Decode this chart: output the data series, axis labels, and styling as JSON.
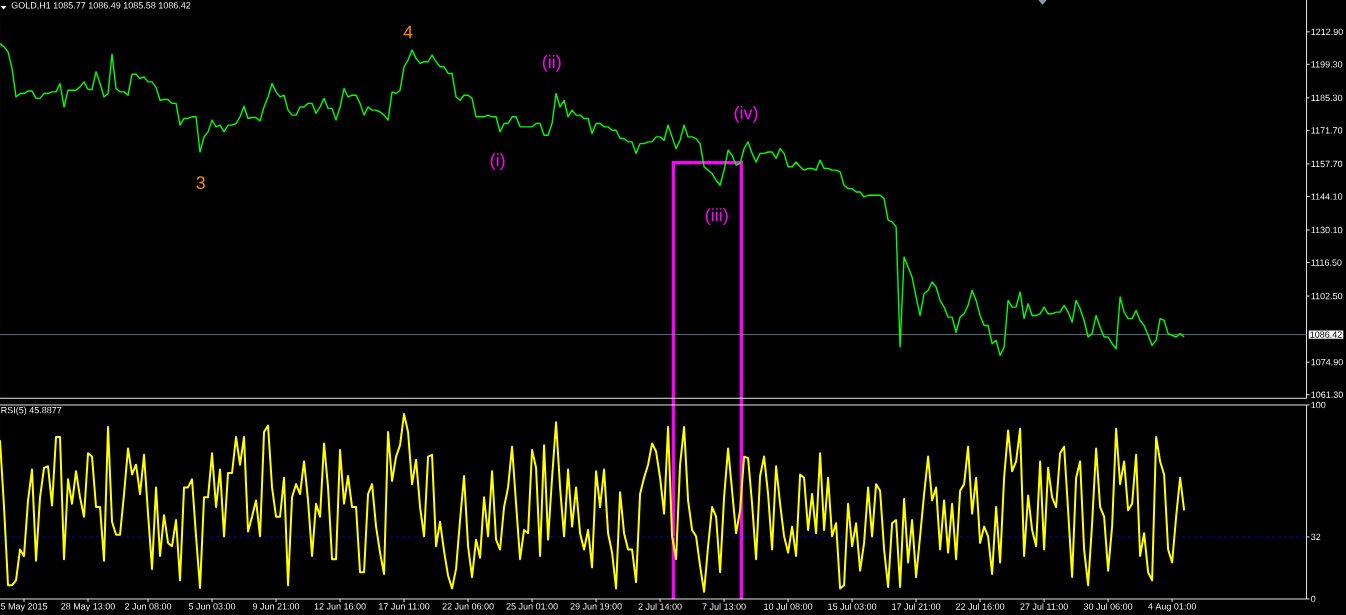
{
  "chart_data": [
    {
      "type": "line",
      "title": "GOLD,H1  1085.77 1086.49 1085.58 1086.42",
      "categories": [
        null,
        null,
        null,
        null,
        null,
        null,
        null,
        null,
        null,
        null,
        null,
        null,
        null,
        null,
        null,
        null,
        null,
        null,
        null,
        null,
        null,
        null,
        null,
        null,
        null,
        null,
        null,
        null,
        null,
        null,
        null,
        null,
        null,
        null,
        null,
        null,
        null,
        null,
        null,
        null,
        null,
        null,
        null,
        null,
        null,
        null,
        null,
        null,
        null,
        null,
        null,
        null,
        null,
        null,
        null,
        null,
        null,
        null,
        null,
        null,
        null,
        null,
        null,
        null,
        null,
        null,
        null,
        null,
        null,
        null,
        null,
        null,
        null,
        null,
        null,
        null,
        null,
        null,
        null,
        null,
        null,
        null,
        null,
        null,
        null,
        null,
        null,
        null,
        null,
        null,
        null,
        null,
        null,
        null,
        null,
        null,
        null,
        null,
        null,
        null,
        null,
        null,
        null,
        null,
        null,
        null,
        null,
        null,
        null,
        null,
        null,
        null,
        null,
        null,
        null,
        null,
        null,
        null,
        null,
        null,
        null,
        null,
        null,
        null,
        null,
        null,
        null,
        null,
        null,
        null,
        null,
        null,
        null,
        null,
        null,
        null,
        null,
        null,
        null,
        null,
        null,
        null,
        null,
        null,
        null,
        null,
        null,
        null,
        null,
        null,
        null,
        null,
        null,
        null,
        null,
        null,
        null,
        null,
        null,
        null,
        null,
        null,
        null,
        null,
        null,
        null,
        null,
        null,
        null,
        null,
        null,
        null,
        null,
        null,
        null,
        null,
        null,
        null,
        null,
        null,
        null,
        null,
        null,
        null,
        null,
        null,
        null,
        null,
        null,
        null,
        null,
        null,
        null,
        null,
        null,
        null,
        null,
        null,
        null,
        null,
        null,
        null,
        null,
        null,
        null,
        null,
        null,
        null,
        null,
        null,
        null,
        null,
        null,
        null,
        null,
        null,
        null,
        null,
        null,
        null,
        null,
        null,
        null,
        null,
        null,
        null,
        null,
        null,
        null,
        null,
        null,
        null,
        null,
        null,
        null,
        null,
        null,
        null,
        null,
        null,
        null,
        null,
        null,
        null,
        null,
        null,
        null,
        null,
        null,
        null,
        null,
        null,
        null,
        null,
        null,
        null,
        null,
        null,
        null,
        null,
        null,
        null,
        null,
        null,
        null,
        null,
        null,
        null,
        null,
        null,
        null,
        null,
        null,
        null,
        null,
        null,
        null,
        null,
        null,
        null,
        null,
        null,
        null,
        null,
        null,
        null,
        null,
        null,
        null,
        null,
        null,
        null,
        null,
        null,
        null,
        null,
        null
      ],
      "series": [
        {
          "color": "#00ff00",
          "values": [
            1208.0,
            1206.6,
            1204.5,
            1197.7,
            1185.7,
            1187.1,
            1187.1,
            1188.2,
            1188.2,
            1185.1,
            1185.1,
            1187.1,
            1187.1,
            1187.8,
            1187.8,
            1191.3,
            1181.5,
            1188.5,
            1188.5,
            1188.5,
            1189.9,
            1192.0,
            1188.8,
            1188.8,
            1196.2,
            1191.3,
            1185.7,
            1187.1,
            1203.6,
            1189.2,
            1187.8,
            1187.8,
            1186.4,
            1195.2,
            1195.2,
            1193.4,
            1194.1,
            1192.0,
            1192.0,
            1189.7,
            1184.3,
            1184.6,
            1184.6,
            1183.0,
            1183.0,
            1173.9,
            1176.7,
            1176.7,
            1177.4,
            1177.4,
            1162.7,
            1169.0,
            1171.1,
            1176.0,
            1173.2,
            1173.9,
            1171.1,
            1173.9,
            1173.9,
            1174.6,
            1177.4,
            1181.8,
            1176.7,
            1177.1,
            1177.1,
            1175.7,
            1181.5,
            1185.7,
            1191.3,
            1187.8,
            1185.7,
            1186.4,
            1180.2,
            1178.1,
            1178.1,
            1181.5,
            1181.5,
            1183.0,
            1183.0,
            1178.8,
            1181.5,
            1185.1,
            1180.9,
            1180.9,
            1176.0,
            1181.5,
            1189.2,
            1185.7,
            1186.4,
            1186.4,
            1183.0,
            1178.1,
            1181.5,
            1180.2,
            1180.2,
            1179.4,
            1178.1,
            1176.0,
            1187.8,
            1187.1,
            1188.5,
            1198.3,
            1201.1,
            1205.3,
            1201.8,
            1199.7,
            1200.4,
            1200.4,
            1203.2,
            1200.4,
            1198.3,
            1198.3,
            1195.5,
            1195.5,
            1185.7,
            1184.3,
            1186.4,
            1186.4,
            1185.1,
            1177.4,
            1177.4,
            1177.4,
            1178.1,
            1177.4,
            1177.4,
            1171.1,
            1174.6,
            1174.6,
            1177.4,
            1177.4,
            1173.2,
            1173.2,
            1173.2,
            1173.2,
            1174.6,
            1174.6,
            1169.7,
            1169.7,
            1174.6,
            1187.1,
            1181.5,
            1184.3,
            1177.4,
            1180.2,
            1178.1,
            1178.1,
            1176.7,
            1176.7,
            1170.4,
            1174.6,
            1174.6,
            1173.2,
            1173.2,
            1171.8,
            1171.8,
            1168.3,
            1168.3,
            1166.9,
            1166.9,
            1162.1,
            1166.2,
            1166.2,
            1166.9,
            1166.9,
            1169.0,
            1169.0,
            1167.6,
            1173.9,
            1169.0,
            1164.1,
            1167.6,
            1173.9,
            1169.0,
            1169.0,
            1168.3,
            1166.2,
            1156.5,
            1155.1,
            1153.7,
            1150.9,
            1148.8,
            1155.1,
            1163.4,
            1161.3,
            1157.2,
            1157.9,
            1164.1,
            1166.9,
            1162.1,
            1158.5,
            1162.1,
            1162.1,
            1162.7,
            1162.7,
            1160.0,
            1164.1,
            1162.1,
            1156.5,
            1156.5,
            1158.5,
            1156.5,
            1155.1,
            1155.8,
            1155.8,
            1155.1,
            1159.3,
            1155.8,
            1155.8,
            1155.1,
            1155.1,
            1154.4,
            1148.8,
            1147.4,
            1147.4,
            1146.0,
            1146.0,
            1143.9,
            1144.6,
            1144.6,
            1144.6,
            1144.6,
            1143.2,
            1134.2,
            1133.5,
            1131.4,
            1081.2,
            1118.8,
            1114.6,
            1110.4,
            1102.1,
            1094.4,
            1103.5,
            1104.9,
            1108.4,
            1106.3,
            1100.7,
            1097.9,
            1093.7,
            1093.7,
            1087.4,
            1093.7,
            1095.1,
            1098.6,
            1104.9,
            1100.7,
            1094.4,
            1090.2,
            1090.2,
            1082.6,
            1084.0,
            1077.7,
            1081.2,
            1100.7,
            1097.9,
            1097.9,
            1104.2,
            1093.1,
            1099.3,
            1094.4,
            1094.4,
            1095.1,
            1097.9,
            1095.1,
            1095.1,
            1095.8,
            1095.8,
            1098.6,
            1095.8,
            1091.6,
            1100.7,
            1097.2,
            1092.3,
            1085.4,
            1086.8,
            1094.4,
            1089.5,
            1085.4,
            1085.4,
            1082.6,
            1080.5,
            1102.1,
            1095.8,
            1093.1,
            1093.1,
            1096.5,
            1092.3,
            1090.2,
            1086.1,
            1081.9,
            1084.0,
            1093.1,
            1092.3,
            1086.8,
            1086.1,
            1085.4,
            1086.8,
            1085.4
          ]
        }
      ],
      "ylim": [
        1059.8,
        1226.2
      ],
      "yticks": [
        {
          "value": 1212.9,
          "label": "1212.90"
        },
        {
          "value": 1199.3,
          "label": "1199.30"
        },
        {
          "value": 1185.3,
          "label": "1185.30"
        },
        {
          "value": 1171.7,
          "label": "1171.70"
        },
        {
          "value": 1157.7,
          "label": "1157.70"
        },
        {
          "value": 1144.1,
          "label": "1144.10"
        },
        {
          "value": 1130.1,
          "label": "1130.10"
        },
        {
          "value": 1116.5,
          "label": "1116.50"
        },
        {
          "value": 1102.5,
          "label": "1102.50"
        },
        {
          "value": 1074.9,
          "label": "1074.90"
        },
        {
          "value": 1061.3,
          "label": "1061.30"
        }
      ],
      "ref_lines": [
        {
          "axis": "y",
          "value": 1086.42,
          "label": "1086.42",
          "color": "#778899"
        }
      ],
      "annotations": [
        "3",
        "4",
        "(i)",
        "(ii)",
        "(iii)",
        "(iv)"
      ]
    },
    {
      "type": "line",
      "title": "RSI(5) 45.8877",
      "categories": [
        null,
        null,
        null,
        null,
        null,
        null,
        "5 May 2015",
        null,
        null,
        null,
        null,
        null,
        null,
        null,
        null,
        null,
        null,
        null,
        null,
        null,
        null,
        null,
        "28 May 13:00",
        null,
        null,
        null,
        null,
        null,
        null,
        null,
        null,
        null,
        null,
        null,
        null,
        null,
        null,
        "2 Jun 08:00",
        null,
        null,
        null,
        null,
        null,
        null,
        null,
        null,
        null,
        null,
        null,
        null,
        null,
        null,
        null,
        "5 Jun 03:00",
        null,
        null,
        null,
        null,
        null,
        null,
        null,
        null,
        null,
        null,
        null,
        null,
        null,
        null,
        null,
        "9 Jun 21:00",
        null,
        null,
        null,
        null,
        null,
        null,
        null,
        null,
        null,
        null,
        null,
        null,
        null,
        null,
        null,
        "12 Jun 16:00",
        null,
        null,
        null,
        null,
        null,
        null,
        null,
        null,
        null,
        null,
        null,
        null,
        null,
        null,
        null,
        "17 Jun 11:00",
        null,
        null,
        null,
        null,
        null,
        null,
        null,
        null,
        null,
        null,
        null,
        null,
        null,
        null,
        null,
        "22 Jun 06:00",
        null,
        null,
        null,
        null,
        null,
        null,
        null,
        null,
        null,
        null,
        null,
        null,
        null,
        null,
        null,
        "25 Jun 01:00",
        null,
        null,
        null,
        null,
        null,
        null,
        null,
        null,
        null,
        null,
        null,
        null,
        null,
        null,
        null,
        "29 Jun 19:00",
        null,
        null,
        null,
        null,
        null,
        null,
        null,
        null,
        null,
        null,
        null,
        null,
        null,
        null,
        null,
        "2 Jul 14:00",
        null,
        null,
        null,
        null,
        null,
        null,
        null,
        null,
        null,
        null,
        null,
        null,
        null,
        null,
        null,
        "7 Jul 13:00",
        null,
        null,
        null,
        null,
        null,
        null,
        null,
        null,
        null,
        null,
        null,
        null,
        null,
        null,
        null,
        "10 Jul 08:00",
        null,
        null,
        null,
        null,
        null,
        null,
        null,
        null,
        null,
        null,
        null,
        null,
        null,
        null,
        null,
        "15 Jul 03:00",
        null,
        null,
        null,
        null,
        null,
        null,
        null,
        null,
        null,
        null,
        null,
        null,
        null,
        null,
        null,
        "17 Jul 21:00",
        null,
        null,
        null,
        null,
        null,
        null,
        null,
        null,
        null,
        null,
        null,
        null,
        null,
        null,
        null,
        "22 Jul 16:00",
        null,
        null,
        null,
        null,
        null,
        null,
        null,
        null,
        null,
        null,
        null,
        null,
        null,
        null,
        null,
        "27 Jul 11:00",
        null,
        null,
        null,
        null,
        null,
        null,
        null,
        null,
        null,
        null,
        null,
        null,
        null,
        null,
        null,
        "30 Jul 06:00",
        null,
        null,
        null,
        null,
        null,
        null,
        null,
        null,
        null,
        null,
        null,
        null,
        null,
        null,
        null,
        "4 Aug 01:00",
        null,
        null,
        null
      ],
      "series": [
        {
          "color": "#ffff00",
          "values": [
            81.8,
            47.4,
            7.1,
            7.1,
            9.6,
            25.5,
            22.2,
            50.8,
            66.7,
            19.7,
            52.4,
            67.6,
            68.4,
            48.2,
            83.5,
            83.5,
            20.5,
            61.7,
            49.1,
            65.9,
            52.4,
            42.4,
            75.1,
            73.4,
            47.4,
            47.4,
            19.7,
            88.6,
            39.8,
            33.1,
            33.1,
            54.1,
            77.6,
            64.2,
            69.2,
            54.1,
            74.3,
            44.0,
            15.5,
            57.5,
            22.2,
            43.2,
            28.9,
            27.2,
            40.7,
            9.6,
            57.5,
            57.5,
            61.7,
            32.3,
            5.7,
            52.4,
            52.4,
            75.1,
            47.4,
            66.7,
            32.3,
            65.0,
            65.0,
            83.5,
            69.2,
            83.5,
            34.8,
            42.4,
            50.8,
            32.3,
            86.1,
            89.4,
            57.5,
            42.4,
            42.4,
            62.5,
            7.1,
            52.4,
            59.2,
            54.1,
            70.9,
            50.8,
            22.2,
            49.1,
            42.4,
            80.2,
            57.5,
            20.5,
            20.5,
            76.8,
            49.1,
            63.4,
            47.4,
            47.4,
            13.8,
            13.8,
            54.1,
            59.2,
            37.3,
            23.9,
            12.9,
            86.1,
            60.8,
            73.4,
            79.3,
            95.3,
            86.1,
            59.2,
            71.8,
            47.4,
            32.3,
            73.4,
            74.3,
            27.2,
            39.8,
            24.7,
            12.1,
            5.4,
            15.5,
            40.7,
            63.4,
            27.2,
            11.3,
            30.6,
            21.3,
            52.4,
            32.3,
            65.9,
            30.6,
            25.5,
            47.4,
            57.5,
            78.5,
            49.1,
            20.5,
            35.6,
            33.9,
            76.8,
            67.6,
            22.2,
            79.3,
            30.6,
            62.5,
            91.1,
            57.5,
            32.3,
            66.7,
            37.3,
            57.5,
            33.9,
            25.5,
            35.6,
            16.3,
            65.9,
            47.4,
            66.7,
            33.9,
            23.9,
            5.4,
            55.0,
            33.9,
            25.5,
            25.5,
            8.7,
            54.1,
            62.5,
            69.2,
            80.2,
            76.0,
            62.5,
            44.0,
            88.6,
            32.3,
            20.5,
            69.2,
            88.6,
            50.8,
            35.6,
            32.3,
            17.1,
            3.7,
            27.2,
            47.4,
            42.4,
            13.8,
            52.4,
            77.6,
            55.8,
            33.9,
            45.7,
            73.4,
            72.6,
            49.1,
            20.5,
            63.4,
            73.4,
            54.1,
            25.5,
            68.4,
            49.1,
            32.3,
            23.9,
            37.3,
            22.2,
            64.2,
            62.5,
            35.6,
            54.1,
            33.9,
            75.1,
            35.6,
            62.5,
            32.3,
            39.0,
            5.4,
            7.1,
            49.1,
            27.2,
            39.0,
            14.6,
            28.9,
            57.5,
            32.3,
            59.2,
            55.8,
            25.5,
            6.2,
            39.0,
            40.7,
            6.2,
            51.6,
            18.8,
            40.7,
            11.3,
            32.3,
            54.1,
            73.4,
            50.8,
            57.5,
            25.5,
            50.8,
            23.9,
            49.1,
            20.5,
            55.8,
            59.2,
            78.5,
            44.0,
            62.5,
            28.9,
            37.3,
            32.3,
            12.9,
            47.4,
            18.8,
            62.5,
            86.9,
            65.9,
            70.9,
            87.7,
            22.2,
            53.3,
            35.6,
            27.2,
            70.9,
            25.5,
            67.6,
            52.4,
            47.4,
            75.1,
            78.5,
            45.7,
            11.3,
            62.5,
            70.9,
            25.5,
            7.1,
            39.0,
            77.6,
            47.4,
            42.4,
            14.6,
            37.3,
            87.7,
            59.2,
            70.9,
            45.7,
            49.1,
            74.3,
            22.2,
            33.9,
            13.8,
            9.6,
            83.5,
            70.9,
            64.2,
            25.5,
            18.8,
            42.4,
            62.5,
            45.7
          ]
        }
      ],
      "ylim": [
        0,
        100
      ],
      "yticks": [
        0,
        32,
        100
      ],
      "ref_lines": [
        {
          "axis": "y",
          "value": 32,
          "color": "#0000ff",
          "line_style": "dashed"
        }
      ]
    }
  ]
}
